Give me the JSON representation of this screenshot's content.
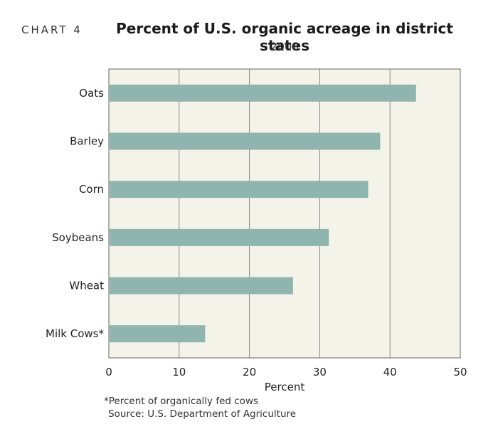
{
  "header": {
    "chart_label": "CHART 4"
  },
  "footer": {
    "footnote": "*Percent of organically fed cows",
    "source": "Source: U.S. Department of Agriculture"
  },
  "colors": {
    "bar": "#8fb5ae",
    "plot_bg": "#f4f3ea",
    "grid": "#888888"
  },
  "chart_data": {
    "type": "bar",
    "orientation": "horizontal",
    "title": "Percent of U.S. organic acreage in district states",
    "subtitle": "2008",
    "xlabel": "Percent",
    "ylabel": "",
    "categories": [
      "Oats",
      "Barley",
      "Corn",
      "Soybeans",
      "Wheat",
      "Milk Cows*"
    ],
    "values": [
      43.7,
      38.6,
      36.9,
      31.3,
      26.2,
      13.7
    ],
    "xlim": [
      0,
      50
    ],
    "xticks": [
      0,
      10,
      20,
      30,
      40,
      50
    ],
    "grid": "vertical"
  }
}
